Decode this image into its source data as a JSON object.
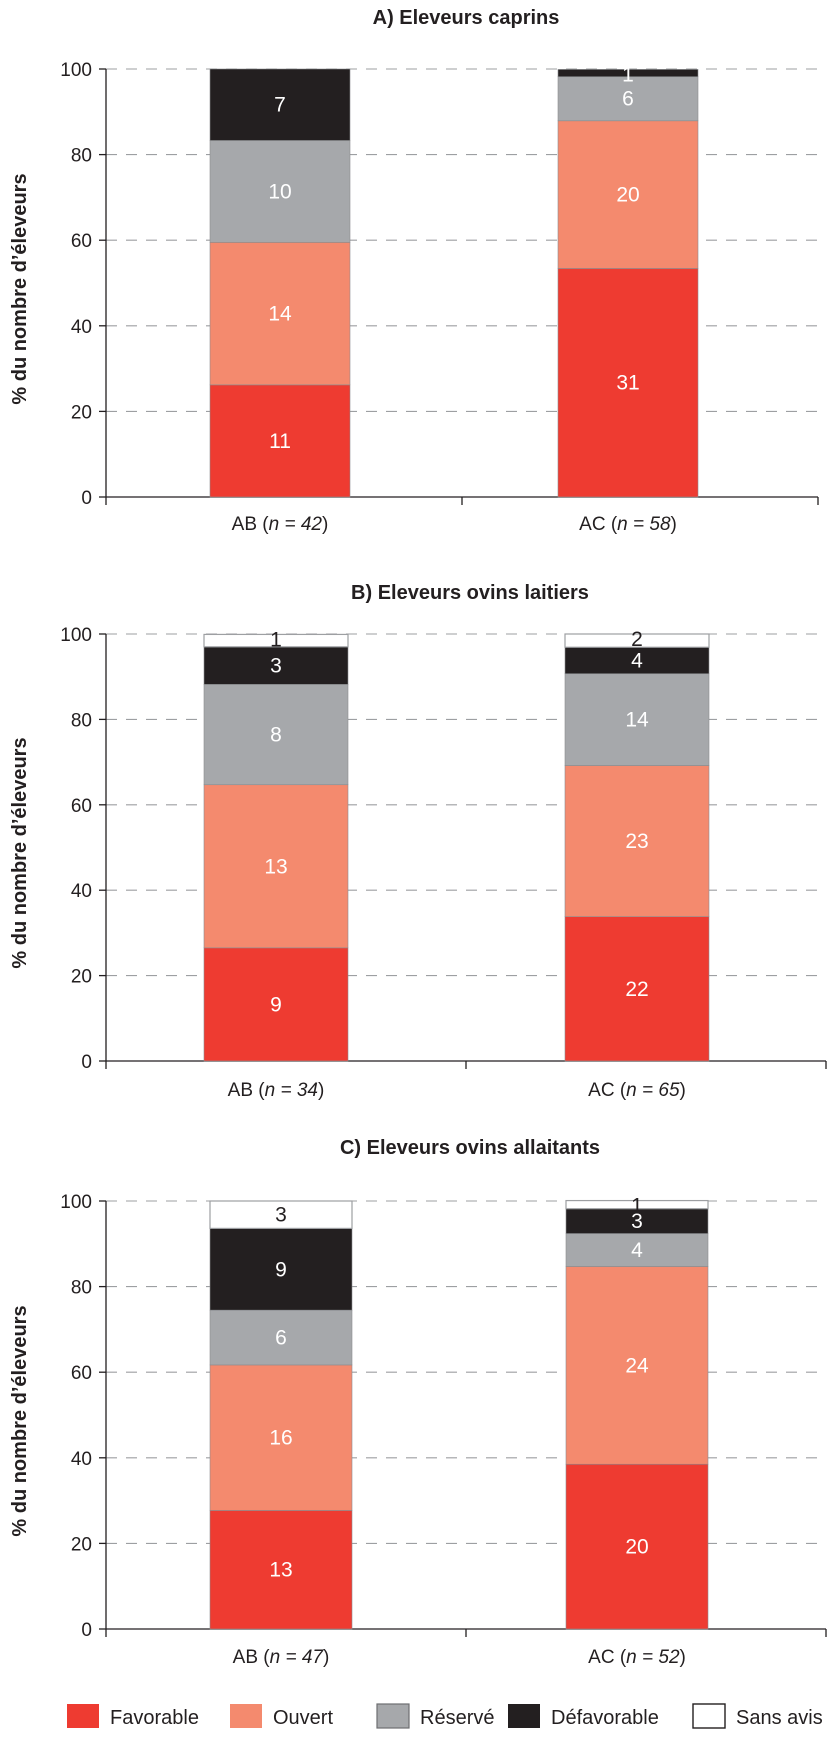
{
  "colors": {
    "Favorable": "#ee3b31",
    "Ouvert": "#f48a6e",
    "Réservé": "#a6a8ab",
    "Défavorable": "#231f20",
    "Sans avis": "#ffffff",
    "axis": "#231f20",
    "grid": "#9d9fa2"
  },
  "legend": [
    "Favorable",
    "Ouvert",
    "Réservé",
    "Défavorable",
    "Sans avis"
  ],
  "chart_data": [
    {
      "type": "bar",
      "stacked": true,
      "title": "A) Eleveurs caprins",
      "ylabel": "% du nombre d’éleveurs",
      "ylim": [
        0,
        100
      ],
      "yticks": [
        0,
        20,
        40,
        60,
        80,
        100
      ],
      "grid": true,
      "categories": [
        {
          "prefix": "AB (",
          "italic": "n = 42",
          "suffix": ")"
        },
        {
          "prefix": "AC (",
          "italic": "n = 58",
          "suffix": ")"
        }
      ],
      "series": [
        {
          "name": "Favorable",
          "counts": [
            11,
            31
          ],
          "percent": [
            26.2,
            53.4
          ]
        },
        {
          "name": "Ouvert",
          "counts": [
            14,
            20
          ],
          "percent": [
            33.3,
            34.5
          ]
        },
        {
          "name": "Réservé",
          "counts": [
            10,
            6
          ],
          "percent": [
            23.8,
            10.3
          ]
        },
        {
          "name": "Défavorable",
          "counts": [
            7,
            1
          ],
          "percent": [
            16.7,
            1.7
          ]
        },
        {
          "name": "Sans avis",
          "counts": [
            null,
            null
          ],
          "percent": [
            0,
            0
          ]
        }
      ]
    },
    {
      "type": "bar",
      "stacked": true,
      "title": "B) Eleveurs ovins laitiers",
      "ylabel": "% du nombre d’éleveurs",
      "ylim": [
        0,
        100
      ],
      "yticks": [
        0,
        20,
        40,
        60,
        80,
        100
      ],
      "grid": true,
      "categories": [
        {
          "prefix": "AB (",
          "italic": "n = 34",
          "suffix": ")"
        },
        {
          "prefix": "AC (",
          "italic": "n = 65",
          "suffix": ")"
        }
      ],
      "series": [
        {
          "name": "Favorable",
          "counts": [
            9,
            22
          ],
          "percent": [
            26.5,
            33.8
          ]
        },
        {
          "name": "Ouvert",
          "counts": [
            13,
            23
          ],
          "percent": [
            38.2,
            35.4
          ]
        },
        {
          "name": "Réservé",
          "counts": [
            8,
            14
          ],
          "percent": [
            23.5,
            21.5
          ]
        },
        {
          "name": "Défavorable",
          "counts": [
            3,
            4
          ],
          "percent": [
            8.8,
            6.2
          ]
        },
        {
          "name": "Sans avis",
          "counts": [
            1,
            2
          ],
          "percent": [
            2.9,
            3.1
          ]
        }
      ]
    },
    {
      "type": "bar",
      "stacked": true,
      "title": "C) Eleveurs  ovins allaitants",
      "ylabel": "% du nombre d’éleveurs",
      "ylim": [
        0,
        100
      ],
      "yticks": [
        0,
        20,
        40,
        60,
        80,
        100
      ],
      "grid": true,
      "categories": [
        {
          "prefix": "AB (",
          "italic": "n = 47",
          "suffix": ")"
        },
        {
          "prefix": "AC (",
          "italic": "n = 52",
          "suffix": ")"
        }
      ],
      "series": [
        {
          "name": "Favorable",
          "counts": [
            13,
            20
          ],
          "percent": [
            27.7,
            38.5
          ]
        },
        {
          "name": "Ouvert",
          "counts": [
            16,
            24
          ],
          "percent": [
            34.0,
            46.2
          ]
        },
        {
          "name": "Réservé",
          "counts": [
            6,
            4
          ],
          "percent": [
            12.8,
            7.7
          ]
        },
        {
          "name": "Défavorable",
          "counts": [
            9,
            3
          ],
          "percent": [
            19.1,
            5.8
          ]
        },
        {
          "name": "Sans avis",
          "counts": [
            3,
            1
          ],
          "percent": [
            6.4,
            1.9
          ]
        }
      ]
    }
  ]
}
